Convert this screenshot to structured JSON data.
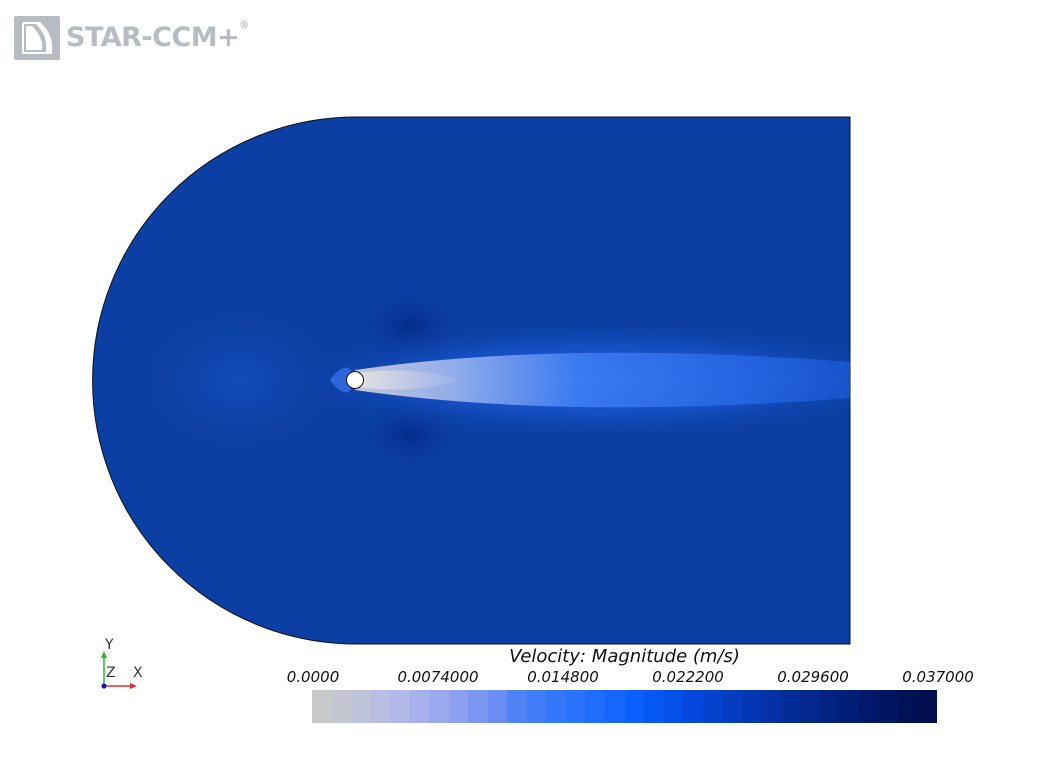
{
  "app": {
    "logo_text": "STAR-CCM+",
    "logo_mark": "®"
  },
  "scene": {
    "domain_color": "#0b3fa3",
    "wake_colors": [
      "#1c5ad8",
      "#2f75f0",
      "#6aa0f5",
      "#c9cbd8"
    ],
    "cylinder_color": "#ffffff",
    "outline_color": "#111111"
  },
  "triad": {
    "y_label": "Y",
    "z_label": "Z",
    "x_label": "X",
    "y_color": "#2db82d",
    "x_color": "#e0302a",
    "z_color": "#1a1aa8"
  },
  "legend": {
    "title": "Velocity: Magnitude (m/s)",
    "tick_labels": [
      "0.0000",
      "0.0074000",
      "0.014800",
      "0.022200",
      "0.029600",
      "0.037000"
    ],
    "min": 0.0,
    "max": 0.037,
    "colormap": [
      "#c9c9c9",
      "#c4c6d2",
      "#bfc3da",
      "#b8bee2",
      "#b0b9e8",
      "#a6b1ec",
      "#9aa9ef",
      "#8ca1f1",
      "#7c97f2",
      "#6a8df3",
      "#4f83f5",
      "#3f7cf7",
      "#3478f9",
      "#2a73fb",
      "#1f6dfc",
      "#1566fd",
      "#0b60fd",
      "#0658f5",
      "#0550e8",
      "#0449db",
      "#0443ce",
      "#043dc0",
      "#0437b3",
      "#0431a6",
      "#042c99",
      "#03278d",
      "#032281",
      "#021d75",
      "#02196b",
      "#021561",
      "#011158",
      "#010e50"
    ]
  }
}
